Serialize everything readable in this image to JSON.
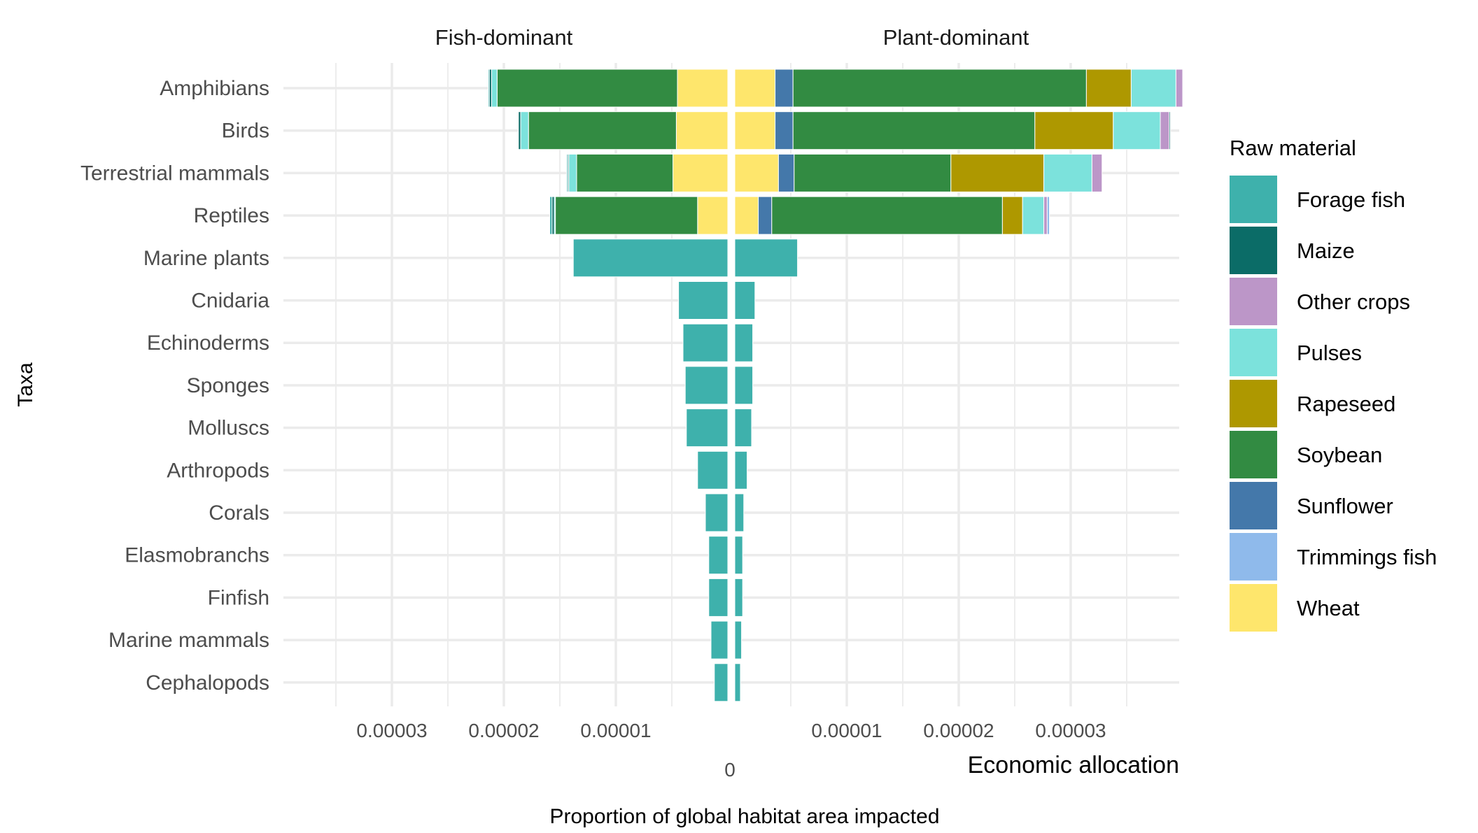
{
  "chart_data": {
    "type": "bar",
    "orientation": "horizontal-diverging-stacked",
    "title": "",
    "facets": [
      "Fish-dominant",
      "Plant-dominant"
    ],
    "xlabel": "Proportion of global habitat area impacted",
    "ylabel": "Taxa",
    "corner_label": "Economic allocation",
    "zero_label": "0",
    "x_ticks_left": [
      "0.00003",
      "0.00002",
      "0.00001"
    ],
    "x_ticks_right": [
      "0.00001",
      "0.00002",
      "0.00003"
    ],
    "xlim_left": [
      0,
      3.98e-05
    ],
    "xlim_right": [
      0,
      3.98e-05
    ],
    "grid": true,
    "legend": {
      "title": "Raw material",
      "position": "right",
      "entries": [
        {
          "name": "Forage fish",
          "color": "#3EB1AC"
        },
        {
          "name": "Maize",
          "color": "#0B6C67"
        },
        {
          "name": "Other crops",
          "color": "#BC96C8"
        },
        {
          "name": "Pulses",
          "color": "#7CE2DC"
        },
        {
          "name": "Rapeseed",
          "color": "#AE9800"
        },
        {
          "name": "Soybean",
          "color": "#328B42"
        },
        {
          "name": "Sunflower",
          "color": "#4478AA"
        },
        {
          "name": "Trimmings fish",
          "color": "#8FBAEB"
        },
        {
          "name": "Wheat",
          "color": "#FEE66C"
        }
      ]
    },
    "stack_order_from_zero": [
      "Wheat",
      "Sunflower",
      "Soybean",
      "Rapeseed",
      "Pulses",
      "Other crops",
      "Trimmings fish",
      "Maize",
      "Forage fish"
    ],
    "categories": [
      "Amphibians",
      "Birds",
      "Terrestrial mammals",
      "Reptiles",
      "Marine plants",
      "Cnidaria",
      "Echinoderms",
      "Sponges",
      "Molluscs",
      "Arthropods",
      "Corals",
      "Elasmobranchs",
      "Finfish",
      "Marine mammals",
      "Cephalopods"
    ],
    "panels": [
      {
        "name": "Fish-dominant",
        "series": [
          {
            "name": "Wheat",
            "values": [
              4.5e-06,
              4.6e-06,
              4.9e-06,
              2.7e-06,
              0,
              0,
              0,
              0,
              0,
              0,
              0,
              0,
              0,
              0,
              0
            ]
          },
          {
            "name": "Sunflower",
            "values": [
              0,
              0,
              0,
              0,
              0,
              0,
              0,
              0,
              0,
              0,
              0,
              0,
              0,
              0,
              0
            ]
          },
          {
            "name": "Soybean",
            "values": [
              1.61e-05,
              1.32e-05,
              8.6e-06,
              1.27e-05,
              0,
              0,
              0,
              0,
              0,
              0,
              0,
              0,
              0,
              0,
              0
            ]
          },
          {
            "name": "Rapeseed",
            "values": [
              0,
              0,
              0,
              0,
              0,
              0,
              0,
              0,
              0,
              0,
              0,
              0,
              0,
              0,
              0
            ]
          },
          {
            "name": "Pulses",
            "values": [
              5e-07,
              7e-07,
              7e-07,
              1e-07,
              0,
              0,
              0,
              0,
              0,
              0,
              0,
              0,
              0,
              0,
              0
            ]
          },
          {
            "name": "Other crops",
            "values": [
              0,
              0,
              0,
              0,
              0,
              0,
              0,
              0,
              0,
              0,
              0,
              0,
              0,
              0,
              0
            ]
          },
          {
            "name": "Trimmings fish",
            "values": [
              0,
              0,
              0,
              0,
              0,
              0,
              0,
              0,
              0,
              0,
              0,
              0,
              0,
              0,
              0
            ]
          },
          {
            "name": "Maize",
            "values": [
              2e-07,
              2e-07,
              1e-07,
              2e-07,
              0,
              0,
              0,
              0,
              0,
              0,
              0,
              0,
              0,
              0,
              0
            ]
          },
          {
            "name": "Forage fish",
            "values": [
              1e-07,
              0,
              1e-07,
              2e-07,
              1.38e-05,
              4.4e-06,
              4e-06,
              3.8e-06,
              3.7e-06,
              2.7e-06,
              2e-06,
              1.7e-06,
              1.7e-06,
              1.5e-06,
              1.2e-06
            ]
          }
        ]
      },
      {
        "name": "Plant-dominant",
        "series": [
          {
            "name": "Wheat",
            "values": [
              3.6e-06,
              3.6e-06,
              3.9e-06,
              2.1e-06,
              0,
              0,
              0,
              0,
              0,
              0,
              0,
              0,
              0,
              0,
              0
            ]
          },
          {
            "name": "Sunflower",
            "values": [
              1.6e-06,
              1.6e-06,
              1.4e-06,
              1.2e-06,
              0,
              0,
              0,
              0,
              0,
              0,
              0,
              0,
              0,
              0,
              0
            ]
          },
          {
            "name": "Soybean",
            "values": [
              2.62e-05,
              2.16e-05,
              1.4e-05,
              2.06e-05,
              0,
              0,
              0,
              0,
              0,
              0,
              0,
              0,
              0,
              0,
              0
            ]
          },
          {
            "name": "Rapeseed",
            "values": [
              4e-06,
              7e-06,
              8.3e-06,
              1.8e-06,
              0,
              0,
              0,
              0,
              0,
              0,
              0,
              0,
              0,
              0,
              0
            ]
          },
          {
            "name": "Pulses",
            "values": [
              4e-06,
              4.2e-06,
              4.3e-06,
              1.9e-06,
              0,
              0,
              0,
              0,
              0,
              0,
              0,
              0,
              0,
              0,
              0
            ]
          },
          {
            "name": "Other crops",
            "values": [
              6e-07,
              8e-07,
              9e-07,
              3e-07,
              0,
              0,
              0,
              0,
              0,
              0,
              0,
              0,
              0,
              0,
              0
            ]
          },
          {
            "name": "Trimmings fish",
            "values": [
              0,
              0,
              0,
              2e-07,
              0,
              0,
              0,
              0,
              0,
              0,
              0,
              0,
              0,
              0,
              0
            ]
          },
          {
            "name": "Maize",
            "values": [
              0,
              1e-07,
              0,
              0,
              0,
              0,
              0,
              0,
              0,
              0,
              0,
              0,
              0,
              0,
              0
            ]
          },
          {
            "name": "Forage fish",
            "values": [
              0,
              0,
              0,
              0,
              5.6e-06,
              1.8e-06,
              1.6e-06,
              1.6e-06,
              1.5e-06,
              1.1e-06,
              8e-07,
              7e-07,
              7e-07,
              6e-07,
              5e-07
            ]
          }
        ]
      }
    ]
  }
}
